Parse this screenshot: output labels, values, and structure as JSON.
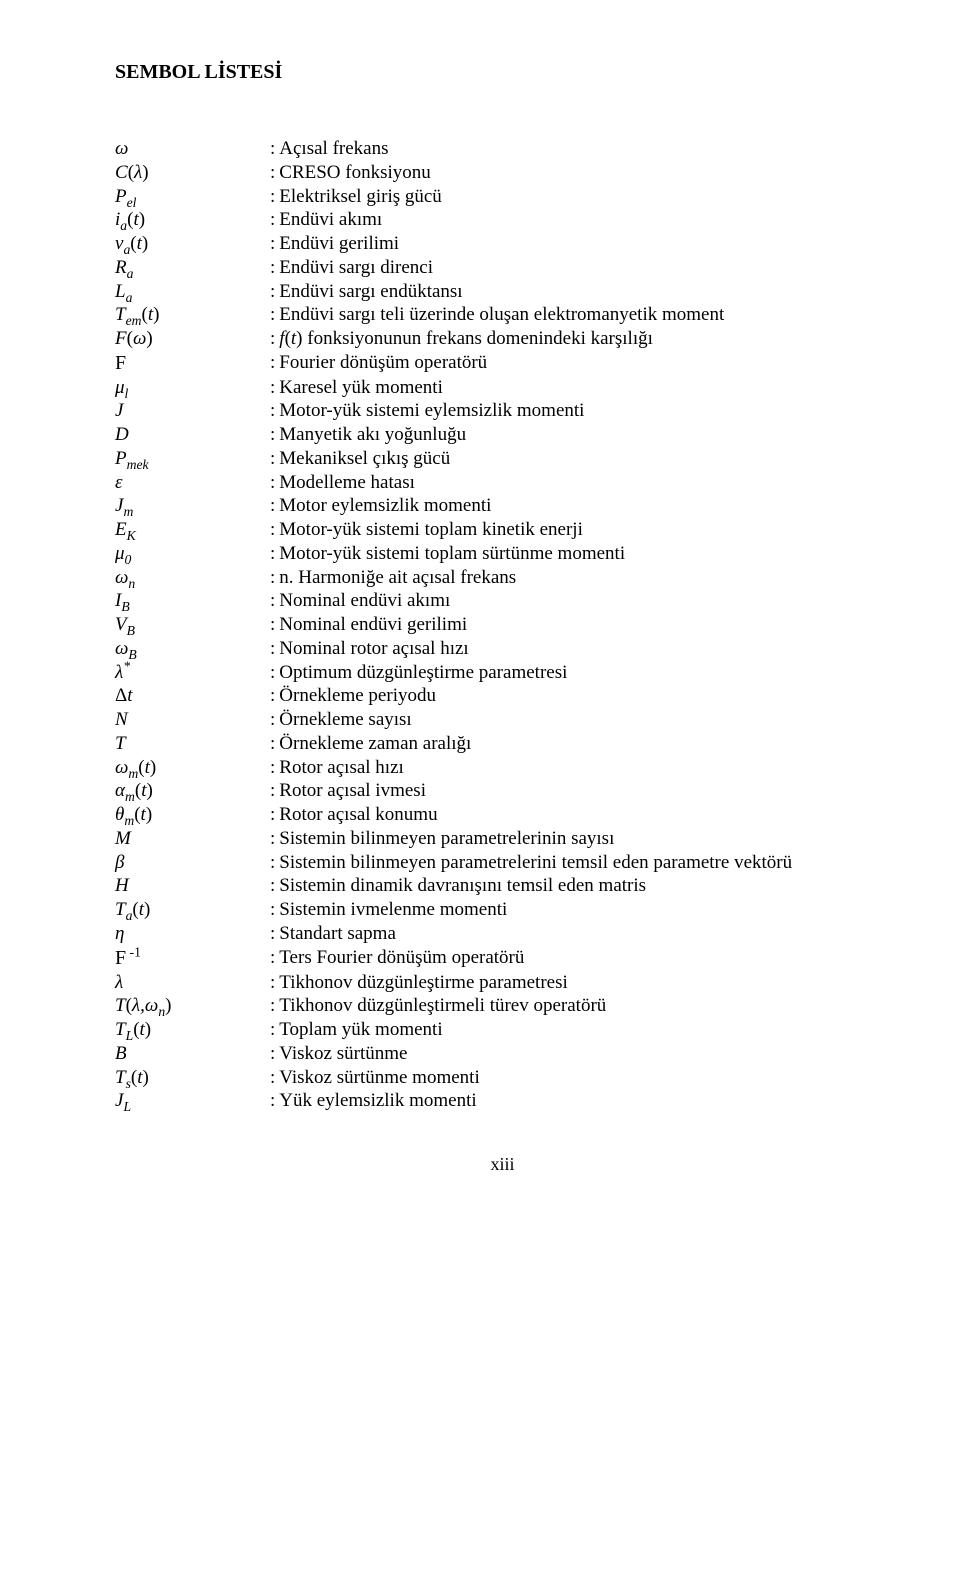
{
  "title": "SEMBOL LİSTESİ",
  "page_number": "xiii",
  "rows": [
    {
      "sym_html": "ω",
      "desc": "Açısal frekans"
    },
    {
      "sym_html": "C<span class='upright'>(</span>λ<span class='upright'>)</span>",
      "desc": "CRESO fonksiyonu"
    },
    {
      "sym_html": "P<sub>el</sub>",
      "desc": "Elektriksel giriş gücü"
    },
    {
      "sym_html": "i<sub>a</sub><span class='upright'>(</span>t<span class='upright'>)</span>",
      "desc": "Endüvi akımı"
    },
    {
      "sym_html": "v<sub>a</sub><span class='upright'>(</span>t<span class='upright'>)</span>",
      "desc": "Endüvi gerilimi"
    },
    {
      "sym_html": "R<sub>a</sub>",
      "desc": "Endüvi sargı direnci"
    },
    {
      "sym_html": "L<sub>a</sub>",
      "desc": "Endüvi sargı endüktansı"
    },
    {
      "sym_html": "T<sub>em</sub><span class='upright'>(</span>t<span class='upright'>)</span>",
      "desc": "Endüvi sargı teli üzerinde oluşan elektromanyetik moment"
    },
    {
      "sym_html": "F<span class='upright'>(</span>ω<span class='upright'>)</span>",
      "desc_html": "<i>f</i>(<i>t</i>) fonksiyonunun frekans domenindeki karşılığı"
    },
    {
      "sym_html": "<span class='script-f'>F</span>",
      "desc": "Fourier dönüşüm operatörü"
    },
    {
      "sym_html": "μ<sub>l</sub>",
      "desc": "Karesel yük momenti"
    },
    {
      "sym_html": "J",
      "desc": "Motor-yük sistemi eylemsizlik momenti"
    },
    {
      "sym_html": "D",
      "desc": "Manyetik akı yoğunluğu"
    },
    {
      "sym_html": "P<sub>mek</sub>",
      "desc": "Mekaniksel çıkış gücü"
    },
    {
      "sym_html": "ε",
      "desc": "Modelleme hatası"
    },
    {
      "sym_html": "J<sub>m</sub>",
      "desc": "Motor eylemsizlik momenti"
    },
    {
      "sym_html": "E<sub>K</sub>",
      "desc": "Motor-yük sistemi toplam kinetik enerji"
    },
    {
      "sym_html": "μ<sub>0</sub>",
      "desc": "Motor-yük sistemi toplam sürtünme momenti"
    },
    {
      "sym_html": "ω<sub>n</sub>",
      "desc": "n. Harmoniğe ait açısal frekans"
    },
    {
      "sym_html": "I<sub>B</sub>",
      "desc": "Nominal endüvi akımı"
    },
    {
      "sym_html": "V<sub>B</sub>",
      "desc": "Nominal endüvi gerilimi"
    },
    {
      "sym_html": "ω<sub>B</sub>",
      "desc": "Nominal rotor açısal hızı"
    },
    {
      "sym_html": "λ<sup>*</sup>",
      "desc": "Optimum düzgünleştirme parametresi"
    },
    {
      "sym_html": "<span class='upright'>Δ</span>t",
      "desc": "Örnekleme periyodu"
    },
    {
      "sym_html": "N",
      "desc": "Örnekleme sayısı"
    },
    {
      "sym_html": "T",
      "desc": "Örnekleme zaman aralığı"
    },
    {
      "sym_html": "ω<sub>m</sub><span class='upright'>(</span>t<span class='upright'>)</span>",
      "desc": "Rotor açısal hızı"
    },
    {
      "sym_html": "α<sub>m</sub><span class='upright'>(</span>t<span class='upright'>)</span>",
      "desc": "Rotor açısal ivmesi"
    },
    {
      "sym_html": "θ<sub>m</sub><span class='upright'>(</span>t<span class='upright'>)</span>",
      "desc": "Rotor açısal konumu"
    },
    {
      "sym_html": "M",
      "desc": "Sistemin bilinmeyen parametrelerinin sayısı"
    },
    {
      "sym_html": "β",
      "desc": "Sistemin bilinmeyen parametrelerini temsil eden parametre vektörü"
    },
    {
      "sym_html": "H",
      "desc": "Sistemin dinamik davranışını temsil eden matris"
    },
    {
      "sym_html": "T<sub>a</sub><span class='upright'>(</span>t<span class='upright'>)</span>",
      "desc": "Sistemin ivmelenme momenti"
    },
    {
      "sym_html": "η",
      "desc": "Standart sapma"
    },
    {
      "sym_html": "<span class='script-f'>F</span><sup>&nbsp;<span class='upright'>-1</span></sup>",
      "desc": "Ters Fourier dönüşüm operatörü"
    },
    {
      "sym_html": "λ",
      "desc": "Tikhonov düzgünleştirme parametresi"
    },
    {
      "sym_html": "T<span class='upright'>(</span>λ,ω<sub>n</sub><span class='upright'>)</span>",
      "desc": "Tikhonov düzgünleştirmeli türev operatörü"
    },
    {
      "sym_html": "T<sub>L</sub><span class='upright'>(</span>t<span class='upright'>)</span>",
      "desc": "Toplam yük momenti"
    },
    {
      "sym_html": "B",
      "desc": "Viskoz sürtünme"
    },
    {
      "sym_html": "T<sub>s</sub><span class='upright'>(</span>t<span class='upright'>)</span>",
      "desc": "Viskoz sürtünme momenti"
    },
    {
      "sym_html": "J<sub>L</sub>",
      "desc": "Yük eylemsizlik momenti"
    }
  ]
}
